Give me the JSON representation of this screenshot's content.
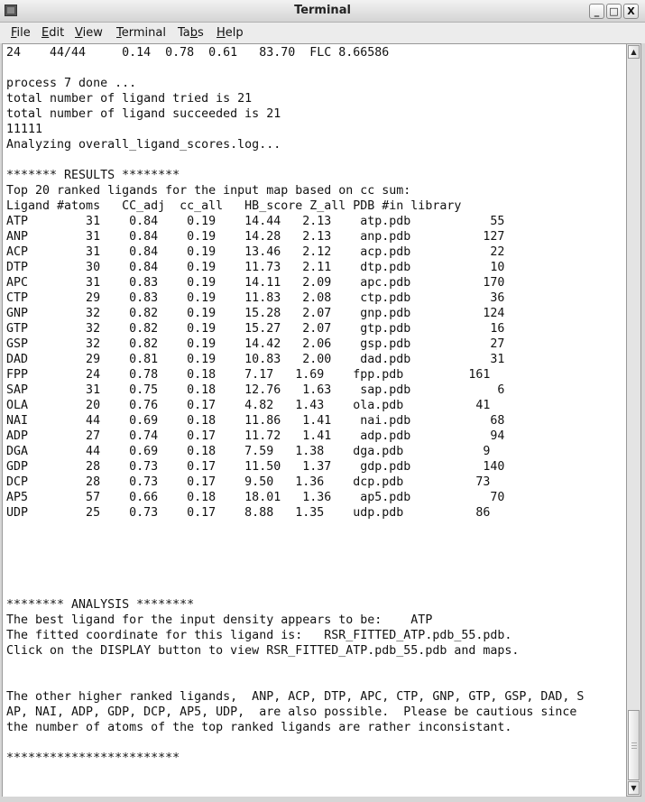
{
  "window": {
    "title": "Terminal",
    "minimize": "_",
    "maximize": "□",
    "close": "X"
  },
  "menu": [
    {
      "pre": "",
      "mn": "F",
      "post": "ile"
    },
    {
      "pre": "",
      "mn": "E",
      "post": "dit"
    },
    {
      "pre": "",
      "mn": "V",
      "post": "iew"
    },
    {
      "pre": "",
      "mn": "T",
      "post": "erminal"
    },
    {
      "pre": "Ta",
      "mn": "b",
      "post": "s"
    },
    {
      "pre": "",
      "mn": "H",
      "post": "elp"
    }
  ],
  "scrollbar": {
    "up": "▲",
    "down": "▼",
    "position_percent": 100
  },
  "terminal": {
    "lines": [
      "24    44/44     0.14  0.78  0.61   83.70  FLC 8.66586",
      "",
      "process 7 done ...",
      "total number of ligand tried is 21",
      "total number of ligand succeeded is 21",
      "11111",
      "Analyzing overall_ligand_scores.log...",
      "",
      "******* RESULTS ********",
      "Top 20 ranked ligands for the input map based on cc sum:",
      "Ligand #atoms   CC_adj  cc_all   HB_score Z_all PDB #in library",
      "ATP        31    0.84    0.19    14.44   2.13    atp.pdb           55",
      "ANP        31    0.84    0.19    14.28   2.13    anp.pdb          127",
      "ACP        31    0.84    0.19    13.46   2.12    acp.pdb           22",
      "DTP        30    0.84    0.19    11.73   2.11    dtp.pdb           10",
      "APC        31    0.83    0.19    14.11   2.09    apc.pdb          170",
      "CTP        29    0.83    0.19    11.83   2.08    ctp.pdb           36",
      "GNP        32    0.82    0.19    15.28   2.07    gnp.pdb          124",
      "GTP        32    0.82    0.19    15.27   2.07    gtp.pdb           16",
      "GSP        32    0.82    0.19    14.42   2.06    gsp.pdb           27",
      "DAD        29    0.81    0.19    10.83   2.00    dad.pdb           31",
      "FPP        24    0.78    0.18    7.17   1.69    fpp.pdb         161",
      "SAP        31    0.75    0.18    12.76   1.63    sap.pdb            6",
      "OLA        20    0.76    0.17    4.82   1.43    ola.pdb          41",
      "NAI        44    0.69    0.18    11.86   1.41    nai.pdb           68",
      "ADP        27    0.74    0.17    11.72   1.41    adp.pdb           94",
      "DGA        44    0.69    0.18    7.59   1.38    dga.pdb           9",
      "GDP        28    0.73    0.17    11.50   1.37    gdp.pdb          140",
      "DCP        28    0.73    0.17    9.50   1.36    dcp.pdb          73",
      "AP5        57    0.66    0.18    18.01   1.36    ap5.pdb           70",
      "UDP        25    0.73    0.17    8.88   1.35    udp.pdb          86",
      "",
      "",
      "",
      "",
      "",
      "******** ANALYSIS ********",
      "The best ligand for the input density appears to be:    ATP",
      "The fitted coordinate for this ligand is:   RSR_FITTED_ATP.pdb_55.pdb.",
      "Click on the DISPLAY button to view RSR_FITTED_ATP.pdb_55.pdb and maps.",
      "",
      "",
      "The other higher ranked ligands,  ANP, ACP, DTP, APC, CTP, GNP, GTP, GSP, DAD, S",
      "AP, NAI, ADP, GDP, DCP, AP5, UDP,  are also possible.  Please be cautious since",
      "the number of atoms of the top ranked ligands are rather inconsistant.",
      "",
      "************************"
    ]
  }
}
